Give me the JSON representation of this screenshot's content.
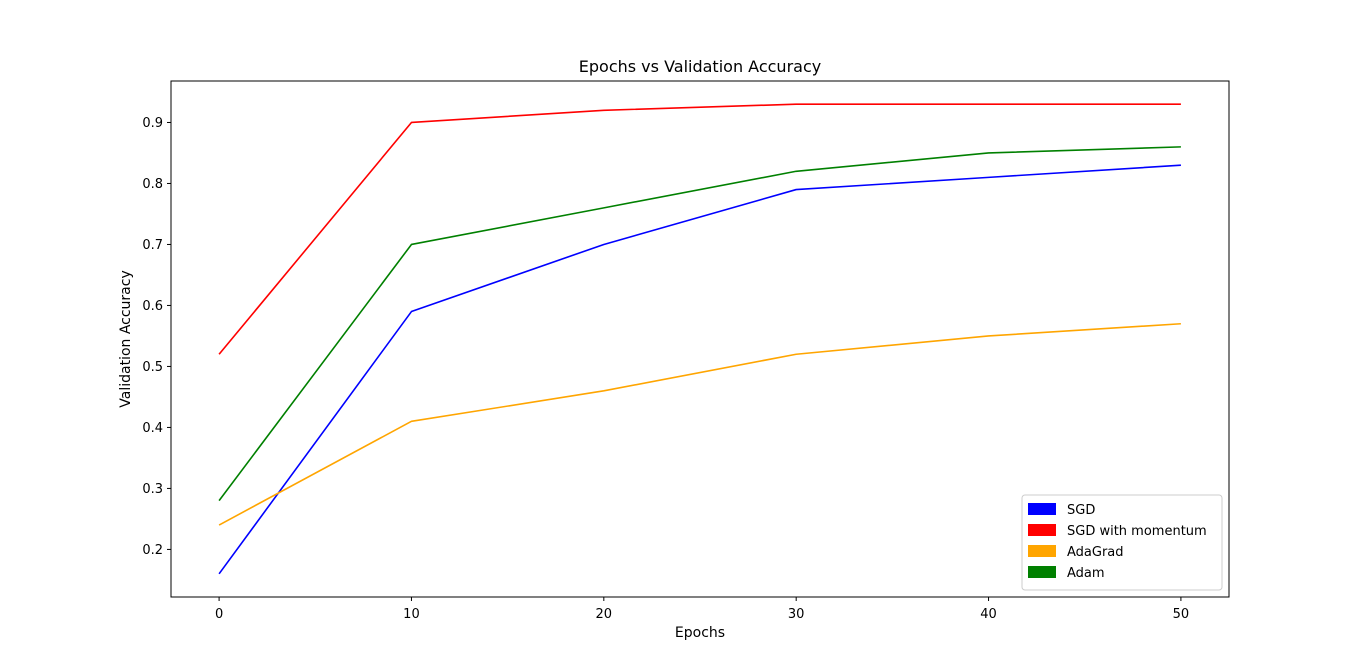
{
  "chart_data": {
    "type": "line",
    "title": "Epochs vs Validation Accuracy",
    "xlabel": "Epochs",
    "ylabel": "Validation Accuracy",
    "x": [
      0,
      10,
      20,
      30,
      40,
      50
    ],
    "xlim": [
      -2.5,
      52.5
    ],
    "ylim": [
      0.122,
      0.968
    ],
    "xticks": [
      0,
      10,
      20,
      30,
      40,
      50
    ],
    "yticks": [
      0.2,
      0.3,
      0.4,
      0.5,
      0.6,
      0.7,
      0.8,
      0.9
    ],
    "grid": false,
    "legend_position": "lower right",
    "series": [
      {
        "name": "SGD",
        "color": "#0000ff",
        "values": [
          0.16,
          0.59,
          0.7,
          0.79,
          0.81,
          0.83
        ]
      },
      {
        "name": "SGD with momentum",
        "color": "#ff0000",
        "values": [
          0.52,
          0.9,
          0.92,
          0.93,
          0.93,
          0.93
        ]
      },
      {
        "name": "AdaGrad",
        "color": "#ffa500",
        "values": [
          0.24,
          0.41,
          0.46,
          0.52,
          0.55,
          0.57
        ]
      },
      {
        "name": "Adam",
        "color": "#008000",
        "values": [
          0.28,
          0.7,
          0.76,
          0.82,
          0.85,
          0.86
        ]
      }
    ]
  }
}
